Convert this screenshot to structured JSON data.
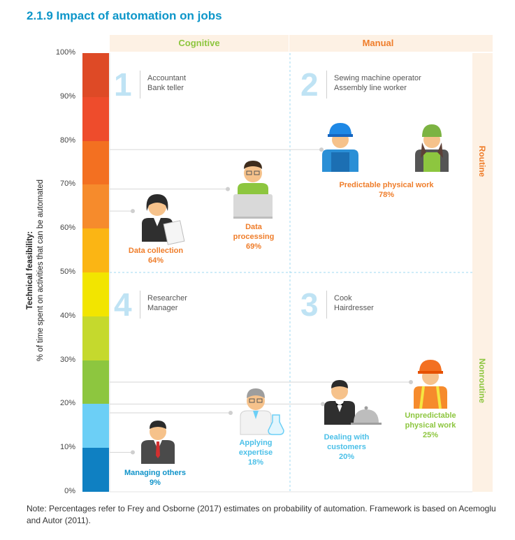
{
  "title": "2.1.9 Impact of automation on jobs",
  "y_axis": {
    "title_line1": "Technical feasibility:",
    "title_line2": "% of time spent on activities that can be automated",
    "ticks": [
      "100%",
      "90%",
      "80%",
      "70%",
      "60%",
      "50%",
      "40%",
      "30%",
      "20%",
      "10%",
      "0%"
    ]
  },
  "columns": [
    "Cognitive",
    "Manual"
  ],
  "rows": [
    "Routine",
    "Nonroutine"
  ],
  "colors": {
    "accent": "#0d96c9",
    "cognitive": "#8dc63f",
    "manual": "#ef7d2a",
    "routine": "#ef7d2a",
    "nonroutine": "#8dc63f",
    "scale": [
      "#0f80c2",
      "#6ccff6",
      "#8dc63f",
      "#c5d92d",
      "#f2e500",
      "#fbb514",
      "#f68b2c",
      "#f37021",
      "#ee4c2c",
      "#de4a26"
    ]
  },
  "quadrants": [
    {
      "number": "1",
      "jobs": [
        "Accountant",
        "Bank teller"
      ]
    },
    {
      "number": "2",
      "jobs": [
        "Sewing machine operator",
        "Assembly line worker"
      ]
    },
    {
      "number": "3",
      "jobs": [
        "Cook",
        "Hairdresser"
      ]
    },
    {
      "number": "4",
      "jobs": [
        "Researcher",
        "Manager"
      ]
    }
  ],
  "chart_data": {
    "type": "scatter",
    "title": "2.1.9 Impact of automation on jobs",
    "ylabel": "Technical feasibility: % of time spent on activities that can be automated",
    "ylim": [
      0,
      100
    ],
    "y_unit": "%",
    "points": [
      {
        "label_lines": [
          "Predictable physical work"
        ],
        "value": 78,
        "value_text": "78%",
        "column": "Manual",
        "row": "Routine"
      },
      {
        "label_lines": [
          "Data",
          "processing"
        ],
        "value": 69,
        "value_text": "69%",
        "column": "Cognitive",
        "row": "Routine"
      },
      {
        "label_lines": [
          "Data collection"
        ],
        "value": 64,
        "value_text": "64%",
        "column": "Cognitive",
        "row": "Routine"
      },
      {
        "label_lines": [
          "Unpredictable",
          "physical work"
        ],
        "value": 25,
        "value_text": "25%",
        "column": "Manual",
        "row": "Nonroutine"
      },
      {
        "label_lines": [
          "Dealing with",
          "customers"
        ],
        "value": 20,
        "value_text": "20%",
        "column": "Manual",
        "row": "Nonroutine"
      },
      {
        "label_lines": [
          "Applying",
          "expertise"
        ],
        "value": 18,
        "value_text": "18%",
        "column": "Cognitive",
        "row": "Nonroutine"
      },
      {
        "label_lines": [
          "Managing others"
        ],
        "value": 9,
        "value_text": "9%",
        "column": "Cognitive",
        "row": "Nonroutine"
      }
    ]
  },
  "note": "Note: Percentages refer to Frey and Osborne (2017) estimates on probability of automation. Framework is based on Acemoglu and Autor (2011)."
}
